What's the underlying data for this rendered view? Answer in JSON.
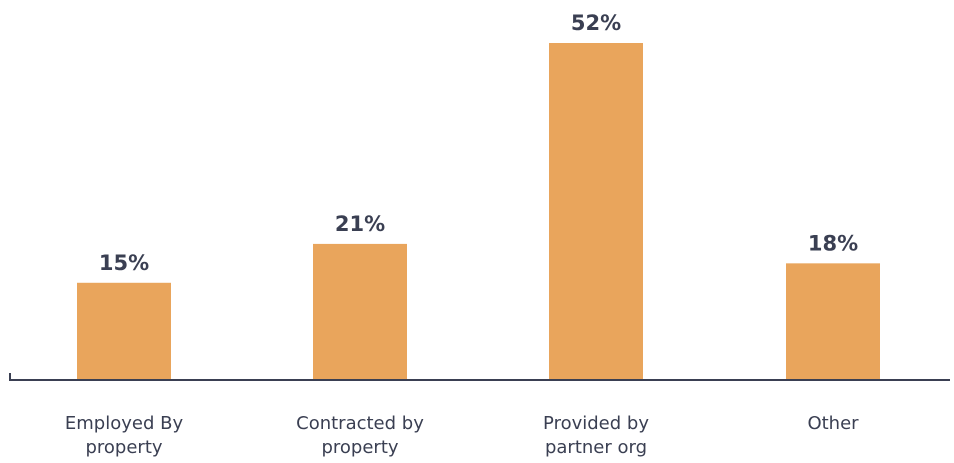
{
  "chart_data": {
    "type": "bar",
    "categories": [
      [
        "Employed By",
        "property"
      ],
      [
        "Contracted by",
        "property"
      ],
      [
        "Provided by",
        "partner org"
      ],
      [
        "Other"
      ]
    ],
    "values": [
      15,
      21,
      52,
      18
    ],
    "value_labels": [
      "15%",
      "21%",
      "52%",
      "18%"
    ],
    "ylim": [
      0,
      52
    ],
    "title": "",
    "xlabel": "",
    "ylabel": "",
    "grid": false,
    "colors": {
      "bar": "#E9A55C",
      "axis": "#3a3f52",
      "text": "#3a3f52"
    }
  }
}
